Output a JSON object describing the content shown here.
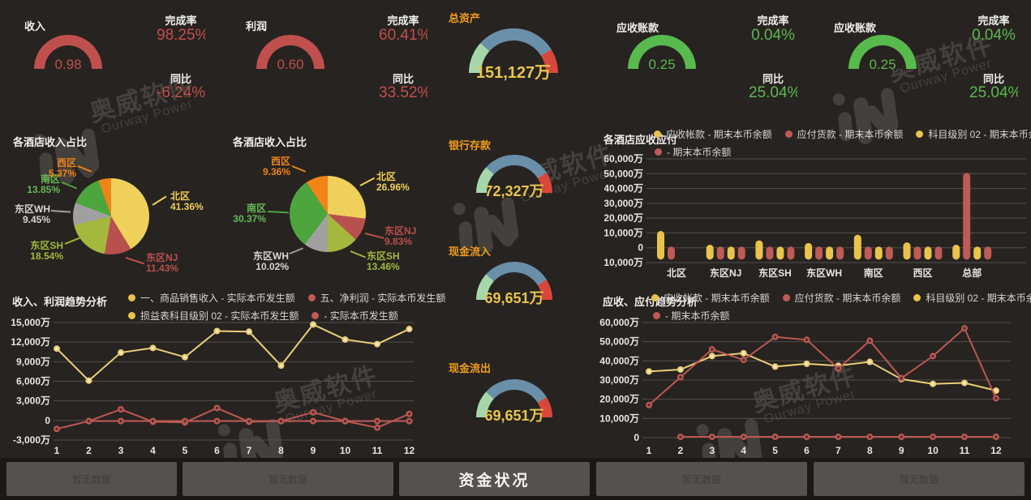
{
  "labels": {
    "completion": "完成率",
    "yoy": "同比"
  },
  "watermark": {
    "cn": "奥威软件",
    "en": "Ourway Power"
  },
  "colors": {
    "background": "#272320",
    "red": "#c0504d",
    "green": "#58ba4d",
    "value_yellow": "#e8c54e",
    "label_orange": "#f09c1e",
    "arc_blue": "#6a8fa9",
    "arc_light_green": "#a6d7ab",
    "arc_red": "#d8473b",
    "series_yellow": "#e9cf78",
    "series_red": "#bc5853",
    "button_bg": "#57514d"
  },
  "buttons": [
    {
      "label": "暂无数据",
      "active": false
    },
    {
      "label": "暂无数据",
      "active": false
    },
    {
      "label": "资金状况",
      "active": true
    },
    {
      "label": "暂无数据",
      "active": false
    },
    {
      "label": "暂无数据",
      "active": false
    }
  ],
  "chart_data": [
    {
      "id": "income_gauge",
      "type": "gauge",
      "label": "收入",
      "value": "0.98",
      "completion": "98.25%",
      "yoy": "-6.24%",
      "arc_color": "#c0504d"
    },
    {
      "id": "profit_gauge",
      "type": "gauge",
      "label": "利润",
      "value": "0.60",
      "completion": "60.41%",
      "yoy": "33.52%",
      "arc_color": "#c0504d"
    },
    {
      "id": "total_assets_gauge",
      "type": "gauge",
      "label": "总资产",
      "value": "151,127万"
    },
    {
      "id": "receivable_gauge_1",
      "type": "gauge",
      "label": "应收账款",
      "value": "0.25",
      "completion": "0.04%",
      "yoy": "25.04%",
      "arc_color": "#58ba4d"
    },
    {
      "id": "receivable_gauge_2",
      "type": "gauge",
      "label": "应收账款",
      "value": "0.25",
      "completion": "0.04%",
      "yoy": "25.04%",
      "arc_color": "#58ba4d"
    },
    {
      "id": "bank_deposit_gauge",
      "type": "gauge",
      "label": "银行存款",
      "value": "72,327万"
    },
    {
      "id": "cash_in_gauge",
      "type": "gauge",
      "label": "现金流入",
      "value": "69,651万"
    },
    {
      "id": "cash_out_gauge",
      "type": "gauge",
      "label": "现金流出",
      "value": "69,651万"
    },
    {
      "id": "pie_left",
      "type": "pie",
      "title": "各酒店收入占比",
      "slices": [
        {
          "name": "北区",
          "pct": 41.36,
          "color": "#efd05b"
        },
        {
          "name": "东区NJ",
          "pct": 11.43,
          "color": "#b8504d"
        },
        {
          "name": "东区SH",
          "pct": 18.54,
          "color": "#a4b83e"
        },
        {
          "name": "东区WH",
          "pct": 9.45,
          "color": "#a0a0a0",
          "text": "#d8d5d1"
        },
        {
          "name": "南区",
          "pct": 13.85,
          "color": "#4da53e",
          "text": "#64b958"
        },
        {
          "name": "西区",
          "pct": 5.37,
          "color": "#f08418"
        }
      ]
    },
    {
      "id": "pie_right",
      "type": "pie",
      "title": "各酒店收入占比",
      "slices": [
        {
          "name": "北区",
          "pct": 26.96,
          "color": "#efd05b"
        },
        {
          "name": "东区NJ",
          "pct": 9.83,
          "color": "#b8504d"
        },
        {
          "name": "东区SH",
          "pct": 13.46,
          "color": "#a4b83e"
        },
        {
          "name": "东区WH",
          "pct": 10.02,
          "color": "#a0a0a0",
          "text": "#d8d5d1"
        },
        {
          "name": "南区",
          "pct": 30.37,
          "color": "#4da53e",
          "text": "#64b958"
        },
        {
          "name": "西区",
          "pct": 9.36,
          "color": "#f08418"
        }
      ]
    },
    {
      "id": "bar_hotels",
      "type": "bar",
      "title": "各酒店应收应付",
      "legend": [
        {
          "color": "#e9c34c",
          "label": "应收帐款 - 期末本币余额"
        },
        {
          "color": "#bf5a55",
          "label": "应付货款 - 期末本币余额"
        },
        {
          "color": "#e9c34c",
          "label": "科目级别 02 - 期末本币余额"
        },
        {
          "color": "#bf5a55",
          "label": "- 期末本币余额"
        }
      ],
      "y_ticks": [
        "60,000万",
        "50,000万",
        "40,000万",
        "30,000万",
        "20,000万",
        "10,000万",
        "0",
        "-10,000万"
      ],
      "y_range": [
        -10000,
        60000
      ],
      "categories": [
        "北区",
        "东区NJ",
        "东区SH",
        "东区WH",
        "南区",
        "西区",
        "总部"
      ],
      "bar_base": -8000,
      "series_colors": [
        "#e9c34c",
        "#bf5a55",
        "#e9c34c",
        "#bf5a55"
      ],
      "groups": [
        [
          {
            "s": 0,
            "v": 11300
          },
          {
            "s": 1,
            "v": 800
          }
        ],
        [
          {
            "s": 0,
            "v": 2000
          },
          {
            "s": 1,
            "v": 800
          },
          {
            "s": 2,
            "v": 800
          },
          {
            "s": 3,
            "v": 800
          }
        ],
        [
          {
            "s": 0,
            "v": 5000
          },
          {
            "s": 1,
            "v": 800
          },
          {
            "s": 2,
            "v": 800
          },
          {
            "s": 3,
            "v": 800
          }
        ],
        [
          {
            "s": 0,
            "v": 3200
          },
          {
            "s": 1,
            "v": 800
          },
          {
            "s": 2,
            "v": 800
          },
          {
            "s": 3,
            "v": 800
          }
        ],
        [
          {
            "s": 0,
            "v": 8800
          },
          {
            "s": 1,
            "v": 800
          },
          {
            "s": 2,
            "v": 800
          },
          {
            "s": 3,
            "v": 800
          }
        ],
        [
          {
            "s": 0,
            "v": 3600
          },
          {
            "s": 1,
            "v": 800
          },
          {
            "s": 2,
            "v": 800
          },
          {
            "s": 3,
            "v": 800
          }
        ],
        [
          {
            "s": 0,
            "v": 2000
          },
          {
            "s": 1,
            "v": 50500
          },
          {
            "s": 2,
            "v": 800
          },
          {
            "s": 3,
            "v": 800
          }
        ]
      ]
    },
    {
      "id": "line_income_profit",
      "type": "line",
      "title": "收入、利润趋势分析",
      "legend": [
        {
          "color": "#e9c34c",
          "label": "一、商品销售收入 - 实际本币发生额"
        },
        {
          "color": "#bf5a55",
          "label": "五、净利润 - 实际本币发生额"
        },
        {
          "color": "#e9c34c",
          "label": "损益表科目级别 02 - 实际本币发生额"
        },
        {
          "color": "#bf5a55",
          "label": "- 实际本币发生额"
        }
      ],
      "x": [
        1,
        2,
        3,
        4,
        5,
        6,
        7,
        8,
        9,
        10,
        11,
        12
      ],
      "y_ticks": [
        "15,000万",
        "12,000万",
        "9,000万",
        "6,000万",
        "3,000万",
        "0",
        "-3,000万"
      ],
      "y_range": [
        -3000,
        15000
      ],
      "series": [
        {
          "name": "一、商品销售收入 - 实际本币发生额",
          "color": "#e9cf78",
          "values": [
            11000,
            6100,
            10400,
            11100,
            9700,
            13700,
            13600,
            8400,
            14700,
            12400,
            11700,
            14000
          ]
        },
        {
          "name": "五、净利润 - 实际本币发生额",
          "color": "#bc5853",
          "values": [
            -1300,
            -100,
            1700,
            -200,
            -300,
            1900,
            -200,
            -100,
            1250,
            -100,
            -1100,
            1000
          ]
        },
        {
          "name": "- 实际本币发生额",
          "color": "#bc5853",
          "values": [
            null,
            -100,
            -100,
            -100,
            -100,
            -100,
            -100,
            -100,
            -100,
            -100,
            -100,
            -100
          ]
        }
      ]
    },
    {
      "id": "line_receivable_payable",
      "type": "line",
      "title": "应收、应付趋势分析",
      "legend": [
        {
          "color": "#e9c34c",
          "label": "应收帐款 - 期末本币余额"
        },
        {
          "color": "#bf5a55",
          "label": "应付货款 - 期末本币余额"
        },
        {
          "color": "#e9c34c",
          "label": "科目级别 02 - 期末本币余额"
        },
        {
          "color": "#bf5a55",
          "label": "- 期末本币余额"
        }
      ],
      "x": [
        1,
        2,
        3,
        4,
        5,
        6,
        7,
        8,
        9,
        10,
        11,
        12
      ],
      "y_ticks": [
        "60,000万",
        "50,000万",
        "40,000万",
        "30,000万",
        "20,000万",
        "10,000万",
        "0"
      ],
      "y_range": [
        0,
        60000
      ],
      "series": [
        {
          "name": "应收帐款 - 期末本币余额",
          "color": "#e9cf78",
          "values": [
            34500,
            35500,
            42500,
            44000,
            37000,
            38500,
            37500,
            39500,
            30500,
            28000,
            28500,
            24500
          ]
        },
        {
          "name": "应付货款 - 期末本币余额",
          "color": "#bc5853",
          "values": [
            17000,
            31500,
            46000,
            40500,
            52500,
            51000,
            36000,
            50500,
            31000,
            42500,
            57000,
            20500
          ]
        },
        {
          "name": "- 期末本币余额",
          "color": "#bc5853",
          "values": [
            null,
            400,
            400,
            400,
            400,
            400,
            400,
            400,
            400,
            400,
            400,
            400
          ]
        }
      ]
    }
  ]
}
